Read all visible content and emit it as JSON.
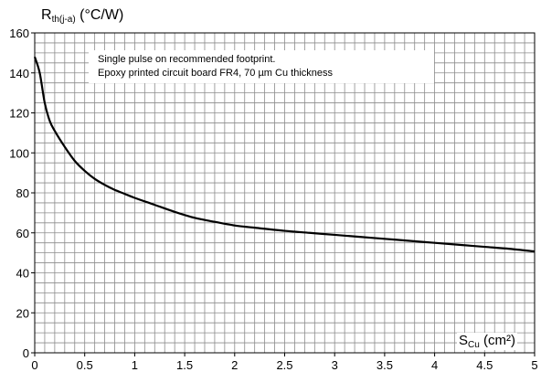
{
  "chart_data": {
    "type": "line",
    "title": "",
    "ylabel": {
      "main": "R",
      "sub": "th(j-a)",
      "unit": "(°C/W)"
    },
    "xlabel": {
      "main": "S",
      "sub": "Cu",
      "unit": "(cm²)"
    },
    "xlim": [
      0,
      5
    ],
    "ylim": [
      0,
      160
    ],
    "x_ticks": [
      "0",
      "0.5",
      "1",
      "1.5",
      "2",
      "2.5",
      "3",
      "3.5",
      "4",
      "4.5",
      "5"
    ],
    "y_ticks": [
      "0",
      "20",
      "40",
      "60",
      "80",
      "100",
      "120",
      "140",
      "160"
    ],
    "grid": true,
    "annotation": [
      "Single  pulse  on  recommended  footprint.",
      "Epoxy  printed  circuit  board  FR4,  70 µm  Cu  thickness"
    ],
    "series": [
      {
        "color": "#000000",
        "points": [
          [
            0.0,
            148
          ],
          [
            0.05,
            140
          ],
          [
            0.1,
            125
          ],
          [
            0.15,
            116
          ],
          [
            0.2,
            111
          ],
          [
            0.3,
            103
          ],
          [
            0.4,
            96
          ],
          [
            0.5,
            91
          ],
          [
            0.6,
            87
          ],
          [
            0.7,
            84
          ],
          [
            0.8,
            81.5
          ],
          [
            0.9,
            79.5
          ],
          [
            1.0,
            77.5
          ],
          [
            1.2,
            74
          ],
          [
            1.4,
            70.5
          ],
          [
            1.6,
            67.5
          ],
          [
            1.8,
            65.5
          ],
          [
            2.0,
            63.7
          ],
          [
            2.25,
            62.3
          ],
          [
            2.5,
            61
          ],
          [
            2.75,
            60
          ],
          [
            3.0,
            59
          ],
          [
            3.25,
            58
          ],
          [
            3.5,
            57
          ],
          [
            3.75,
            56
          ],
          [
            4.0,
            55
          ],
          [
            4.25,
            54
          ],
          [
            4.5,
            53
          ],
          [
            4.75,
            52
          ],
          [
            5.0,
            50.7
          ]
        ]
      }
    ]
  }
}
